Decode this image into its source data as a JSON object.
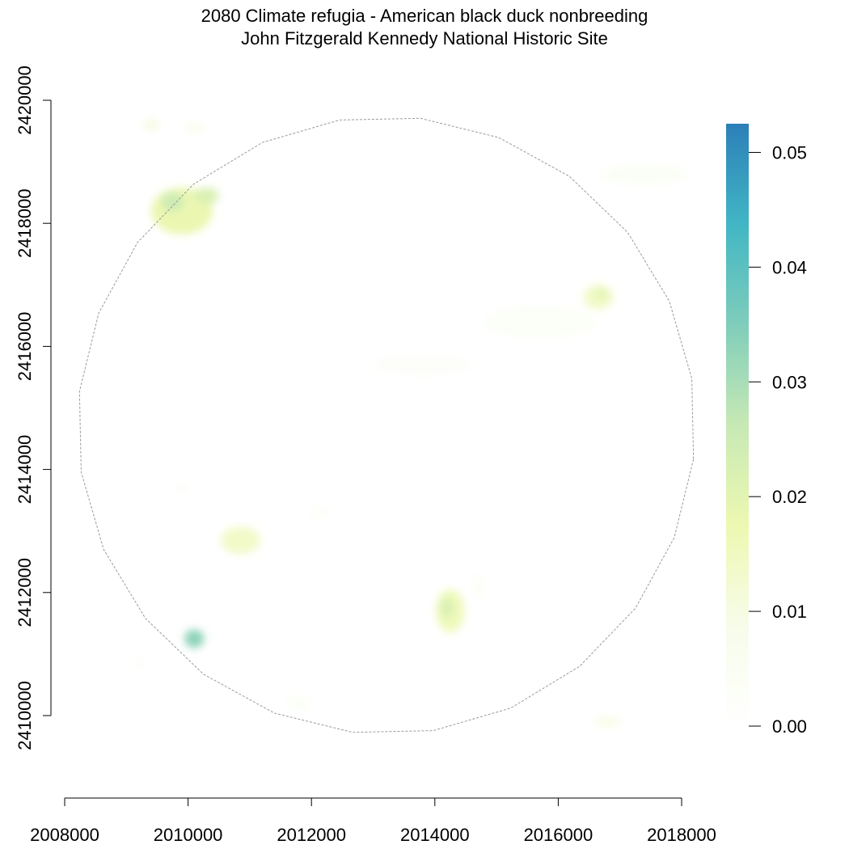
{
  "title": {
    "line1": "2080 Climate refugia - American black duck nonbreeding",
    "line2": "John Fitzgerald Kennedy National Historic Site"
  },
  "map": {
    "x_ticks": [
      2008000,
      2010000,
      2012000,
      2014000,
      2016000,
      2018000
    ],
    "y_ticks": [
      2410000,
      2412000,
      2414000,
      2416000,
      2418000,
      2420000
    ],
    "x_range": [
      2008000,
      2018000
    ],
    "y_range": [
      2410000,
      2420000
    ],
    "boundary": "dashed-gray-polygon",
    "patches": [
      {
        "x": 2009900,
        "y": 2418200,
        "rx": 500,
        "ry": 380,
        "value": 0.018
      },
      {
        "x": 2009750,
        "y": 2418350,
        "rx": 180,
        "ry": 150,
        "value": 0.025
      },
      {
        "x": 2010300,
        "y": 2418450,
        "rx": 200,
        "ry": 130,
        "value": 0.022
      },
      {
        "x": 2010850,
        "y": 2412850,
        "rx": 320,
        "ry": 220,
        "value": 0.014
      },
      {
        "x": 2014250,
        "y": 2411700,
        "rx": 230,
        "ry": 350,
        "value": 0.016
      },
      {
        "x": 2014200,
        "y": 2411750,
        "rx": 110,
        "ry": 160,
        "value": 0.022
      },
      {
        "x": 2016650,
        "y": 2416800,
        "rx": 240,
        "ry": 200,
        "value": 0.014
      },
      {
        "x": 2016700,
        "y": 2416850,
        "rx": 100,
        "ry": 80,
        "value": 0.02
      },
      {
        "x": 2010100,
        "y": 2411250,
        "rx": 160,
        "ry": 150,
        "value": 0.033
      },
      {
        "x": 2009400,
        "y": 2419600,
        "rx": 130,
        "ry": 90,
        "value": 0.01
      },
      {
        "x": 2010100,
        "y": 2419550,
        "rx": 180,
        "ry": 80,
        "value": 0.006
      },
      {
        "x": 2017400,
        "y": 2418800,
        "rx": 700,
        "ry": 160,
        "value": 0.004
      },
      {
        "x": 2015700,
        "y": 2416400,
        "rx": 900,
        "ry": 260,
        "value": 0.003
      },
      {
        "x": 2013800,
        "y": 2415700,
        "rx": 800,
        "ry": 180,
        "value": 0.002
      },
      {
        "x": 2016800,
        "y": 2409900,
        "rx": 220,
        "ry": 60,
        "value": 0.01
      },
      {
        "x": 2014700,
        "y": 2412100,
        "rx": 80,
        "ry": 200,
        "value": 0.004
      },
      {
        "x": 2012100,
        "y": 2413300,
        "rx": 150,
        "ry": 60,
        "value": 0.004
      },
      {
        "x": 2009900,
        "y": 2413700,
        "rx": 100,
        "ry": 50,
        "value": 0.006
      },
      {
        "x": 2011800,
        "y": 2410200,
        "rx": 200,
        "ry": 100,
        "value": 0.004
      },
      {
        "x": 2009200,
        "y": 2410850,
        "rx": 80,
        "ry": 60,
        "value": 0.004
      }
    ]
  },
  "legend": {
    "ticks": [
      "0.00",
      "0.01",
      "0.02",
      "0.03",
      "0.04",
      "0.05"
    ],
    "min": 0,
    "max": 0.0525,
    "colors": [
      "#ffffff",
      "#f7fcea",
      "#edf8b1",
      "#c7e9b4",
      "#7fcdbb",
      "#41b6c4",
      "#2c7fb8"
    ]
  }
}
